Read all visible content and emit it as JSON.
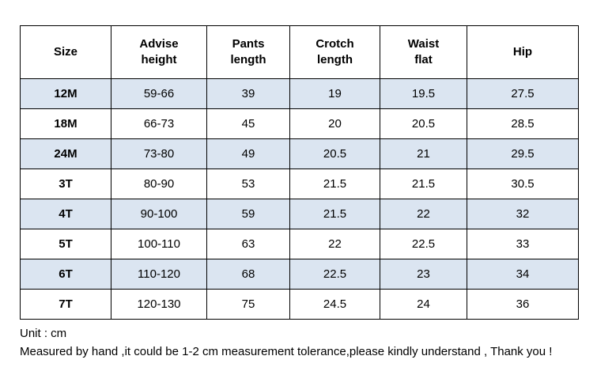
{
  "table": {
    "headers": [
      "Size",
      "Advise height",
      "Pants length",
      "Crotch length",
      "Waist flat",
      "Hip"
    ],
    "rows": [
      [
        "12M",
        "59-66",
        "39",
        "19",
        "19.5",
        "27.5"
      ],
      [
        "18M",
        "66-73",
        "45",
        "20",
        "20.5",
        "28.5"
      ],
      [
        "24M",
        "73-80",
        "49",
        "20.5",
        "21",
        "29.5"
      ],
      [
        "3T",
        "80-90",
        "53",
        "21.5",
        "21.5",
        "30.5"
      ],
      [
        "4T",
        "90-100",
        "59",
        "21.5",
        "22",
        "32"
      ],
      [
        "5T",
        "100-110",
        "63",
        "22",
        "22.5",
        "33"
      ],
      [
        "6T",
        "110-120",
        "68",
        "22.5",
        "23",
        "34"
      ],
      [
        "7T",
        "120-130",
        "75",
        "24.5",
        "24",
        "36"
      ]
    ]
  },
  "footer": {
    "unit": "Unit : cm",
    "note": "Measured by hand ,it could be 1-2 cm measurement tolerance,please kindly understand , Thank you !"
  },
  "colors": {
    "stripe": "#dbe5f1",
    "border": "#000000",
    "text": "#000000"
  }
}
